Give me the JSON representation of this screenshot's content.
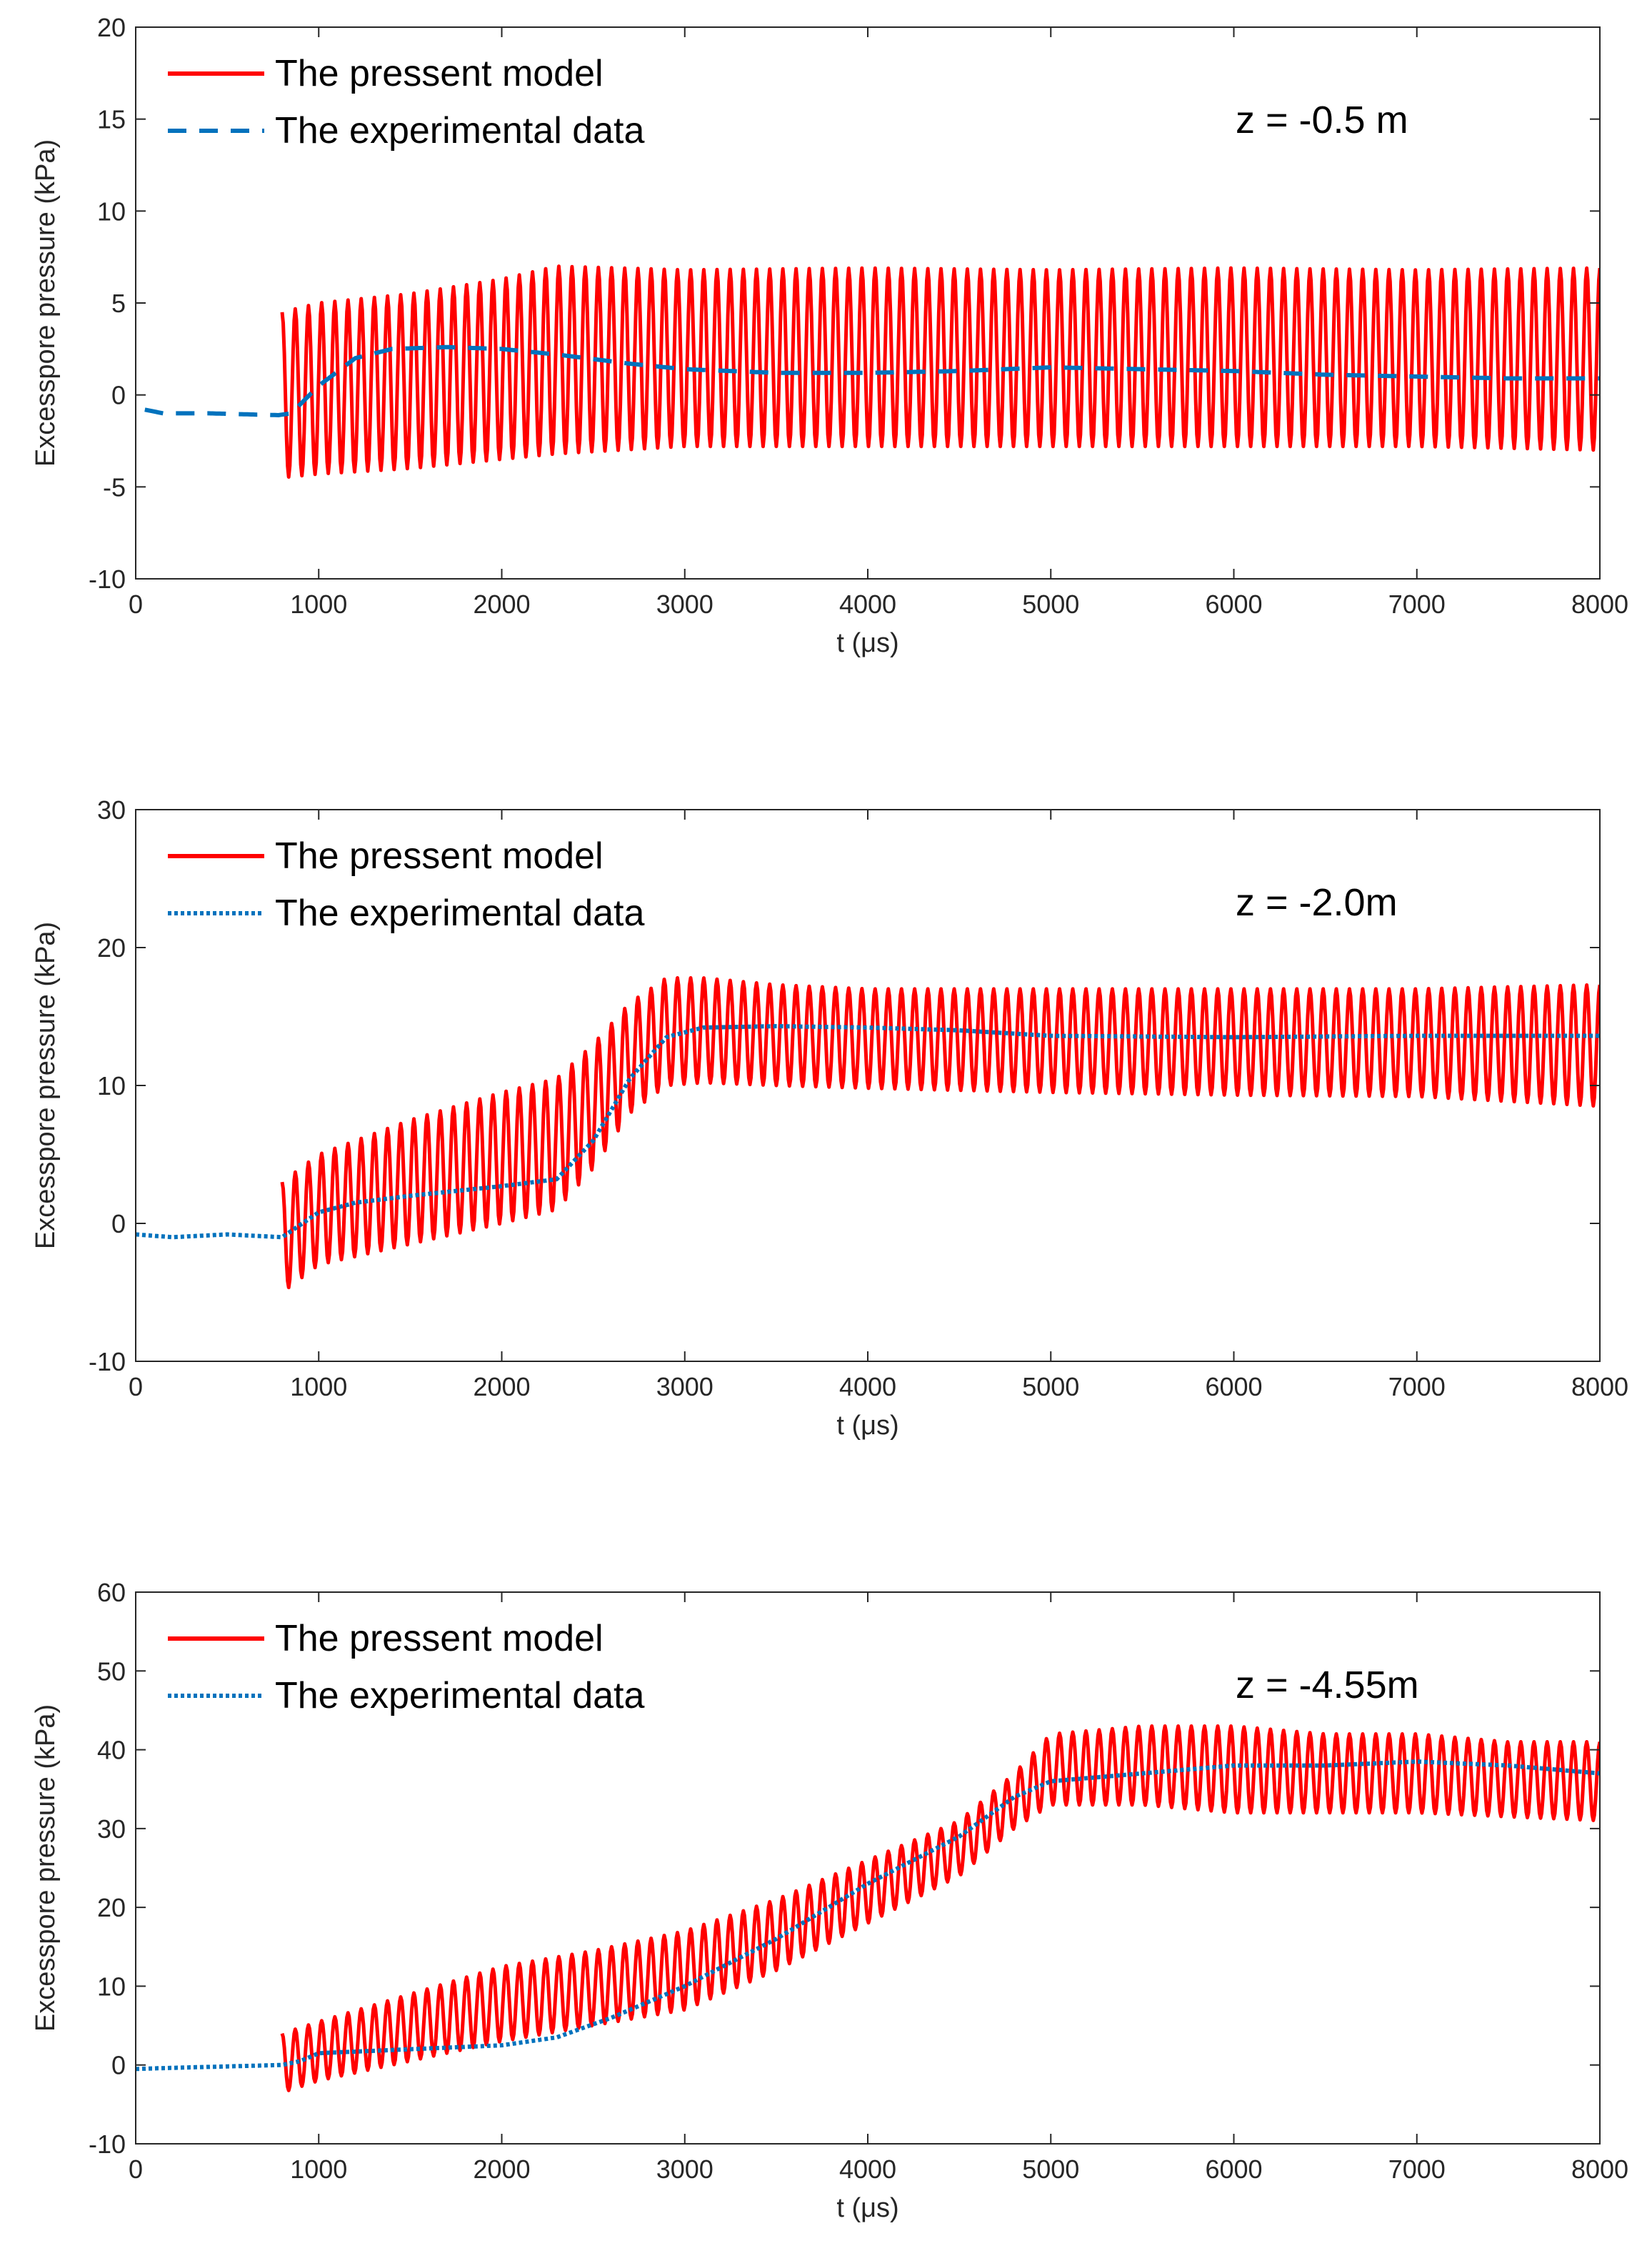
{
  "chart_data": [
    {
      "type": "line",
      "annotation": "z = -0.5 m",
      "xlabel": "t (μs)",
      "ylabel": "Excesspore pressure (kPa)",
      "xlim": [
        0,
        8000
      ],
      "ylim": [
        -10,
        20
      ],
      "xticks": [
        "0",
        "1000",
        "2000",
        "3000",
        "4000",
        "5000",
        "6000",
        "7000",
        "8000"
      ],
      "yticks": [
        "-10",
        "-5",
        "0",
        "5",
        "10",
        "15",
        "20"
      ],
      "legend_position": "top-left",
      "grid": false,
      "series": [
        {
          "name": "The pressent model",
          "style": "solid",
          "color": "#ff0000",
          "oscillating": true,
          "period_us": 72,
          "x": [
            800,
            1000,
            1500,
            2000,
            2300,
            3000,
            4000,
            5000,
            6000,
            7000,
            8000
          ],
          "y_upper": [
            4.5,
            5.0,
            5.5,
            6.3,
            7.0,
            6.8,
            6.9,
            6.8,
            6.9,
            6.8,
            6.9
          ],
          "y_lower": [
            -4.5,
            -4.3,
            -4.0,
            -3.5,
            -3.2,
            -2.8,
            -2.8,
            -2.8,
            -2.8,
            -2.8,
            -3.0
          ]
        },
        {
          "name": "The experimental data",
          "style": "dashed",
          "color": "#0072bd",
          "x": [
            50,
            150,
            400,
            780,
            850,
            1000,
            1200,
            1400,
            1700,
            2000,
            2300,
            2700,
            3000,
            3500,
            4000,
            4500,
            5000,
            5500,
            6000,
            6500,
            7000,
            7500,
            8000
          ],
          "y": [
            -0.8,
            -1.0,
            -1.0,
            -1.1,
            -1.0,
            0.5,
            2.0,
            2.5,
            2.6,
            2.5,
            2.2,
            1.7,
            1.4,
            1.2,
            1.2,
            1.3,
            1.5,
            1.4,
            1.3,
            1.1,
            1.0,
            0.9,
            0.9
          ]
        }
      ]
    },
    {
      "type": "line",
      "annotation": "z = -2.0m",
      "xlabel": "t (μs)",
      "ylabel": "Excesspore pressure (kPa)",
      "xlim": [
        0,
        8000
      ],
      "ylim": [
        -10,
        30
      ],
      "xticks": [
        "0",
        "1000",
        "2000",
        "3000",
        "4000",
        "5000",
        "6000",
        "7000",
        "8000"
      ],
      "yticks": [
        "-10",
        "0",
        "10",
        "20",
        "30"
      ],
      "legend_position": "top-left",
      "grid": false,
      "series": [
        {
          "name": "The pressent model",
          "style": "solid",
          "color": "#ff0000",
          "oscillating": true,
          "period_us": 72,
          "x": [
            800,
            1000,
            1500,
            2000,
            2300,
            2500,
            2700,
            2900,
            3100,
            3500,
            4000,
            5000,
            6000,
            7000,
            8000
          ],
          "y_upper": [
            3.0,
            5.0,
            7.5,
            9.5,
            10.5,
            13.0,
            16.0,
            17.8,
            17.8,
            17.3,
            17.0,
            17.0,
            17.0,
            17.0,
            17.3
          ],
          "y_lower": [
            -5.0,
            -3.0,
            -1.5,
            0.0,
            1.0,
            4.0,
            8.0,
            10.0,
            10.2,
            10.0,
            9.8,
            9.5,
            9.3,
            9.2,
            8.5
          ]
        },
        {
          "name": "The experimental data",
          "style": "dotted",
          "color": "#0072bd",
          "x": [
            0,
            200,
            500,
            800,
            1000,
            1200,
            1500,
            2000,
            2300,
            2500,
            2700,
            2900,
            3100,
            3500,
            4000,
            4500,
            5000,
            6000,
            7000,
            8000
          ],
          "y": [
            -0.8,
            -1.0,
            -0.8,
            -1.0,
            0.8,
            1.5,
            2.0,
            2.7,
            3.2,
            6.0,
            10.5,
            13.5,
            14.2,
            14.3,
            14.2,
            14.0,
            13.6,
            13.5,
            13.6,
            13.6
          ]
        }
      ]
    },
    {
      "type": "line",
      "annotation": "z = -4.55m",
      "xlabel": "t (μs)",
      "ylabel": "Excesspore pressure (kPa)",
      "xlim": [
        0,
        8000
      ],
      "ylim": [
        -10,
        60
      ],
      "xticks": [
        "0",
        "1000",
        "2000",
        "3000",
        "4000",
        "5000",
        "6000",
        "7000",
        "8000"
      ],
      "yticks": [
        "-10",
        "0",
        "10",
        "20",
        "30",
        "40",
        "50",
        "60"
      ],
      "legend_position": "top-left",
      "grid": false,
      "series": [
        {
          "name": "The pressent model",
          "style": "solid",
          "color": "#ff0000",
          "oscillating": true,
          "period_us": 72,
          "x": [
            800,
            1000,
            1500,
            2000,
            2500,
            3000,
            3500,
            4000,
            4500,
            4800,
            5000,
            5500,
            6000,
            6500,
            7000,
            7500,
            8000
          ],
          "y_upper": [
            4.0,
            5.5,
            9.0,
            12.5,
            14.5,
            17.0,
            21.0,
            26.0,
            31.0,
            37.0,
            42.0,
            43.0,
            43.0,
            42.0,
            42.0,
            41.0,
            41.0
          ],
          "y_lower": [
            -3.5,
            -2.0,
            0.5,
            3.0,
            5.0,
            7.0,
            12.0,
            18.0,
            24.0,
            30.0,
            33.0,
            33.0,
            32.0,
            32.0,
            32.0,
            31.5,
            31.0
          ]
        },
        {
          "name": "The experimental data",
          "style": "dotted",
          "color": "#0072bd",
          "x": [
            0,
            300,
            800,
            900,
            1000,
            1500,
            2000,
            2300,
            2600,
            3000,
            3500,
            4000,
            4500,
            4800,
            5000,
            5500,
            6000,
            6500,
            7000,
            7500,
            8000
          ],
          "y": [
            -0.5,
            -0.3,
            0.0,
            0.5,
            1.5,
            2.0,
            2.5,
            3.5,
            6.0,
            10.0,
            16.0,
            23.0,
            29.0,
            34.0,
            36.0,
            37.0,
            38.0,
            38.0,
            38.5,
            38.0,
            37.0
          ]
        }
      ]
    }
  ]
}
